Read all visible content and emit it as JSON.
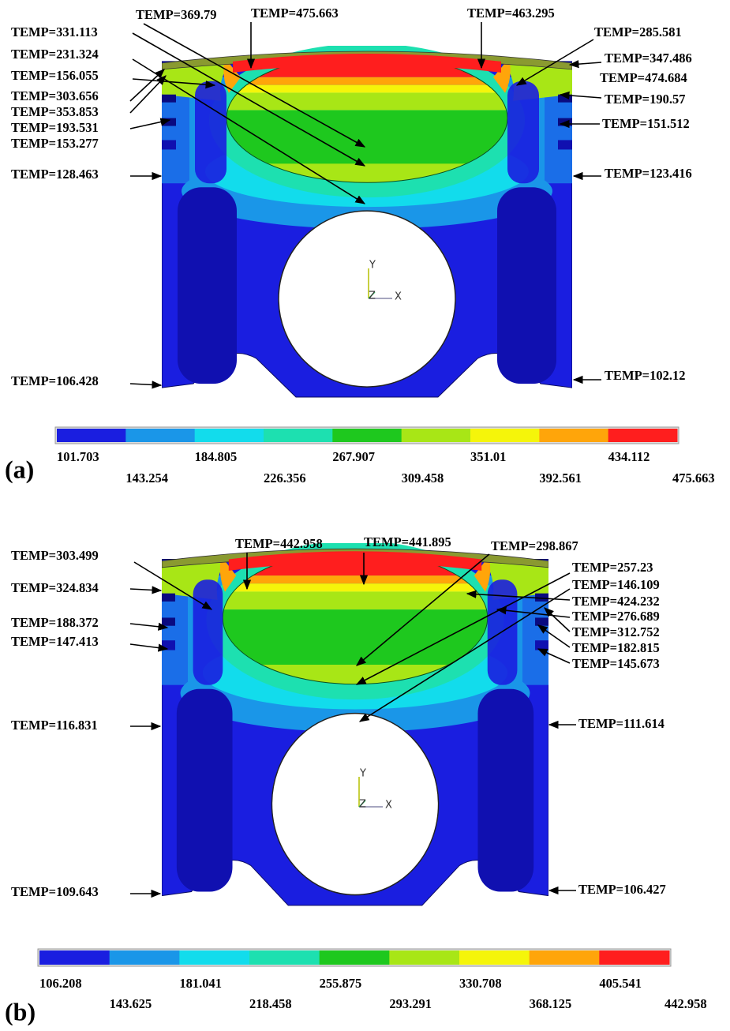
{
  "panels": [
    {
      "label": "(a)",
      "annotations": [
        "TEMP=369.79",
        "TEMP=475.663",
        "TEMP=463.295",
        "TEMP=331.113",
        "TEMP=285.581",
        "TEMP=231.324",
        "TEMP=347.486",
        "TEMP=156.055",
        "TEMP=474.684",
        "TEMP=303.656",
        "TEMP=190.57",
        "TEMP=353.853",
        "TEMP=151.512",
        "TEMP=193.531",
        "TEMP=153.277",
        "TEMP=128.463",
        "TEMP=123.416",
        "TEMP=106.428",
        "TEMP=102.12"
      ],
      "triad": [
        "Y",
        "Z",
        "X"
      ],
      "colorbar": {
        "colors": [
          "#1a1ee0",
          "#1a96e8",
          "#12dcec",
          "#1de0b0",
          "#1ec81e",
          "#a8e616",
          "#f5f50a",
          "#ffa50a",
          "#ff1e1e"
        ],
        "ticks": [
          "101.703",
          "143.254",
          "184.805",
          "226.356",
          "267.907",
          "309.458",
          "351.01",
          "392.561",
          "434.112",
          "475.663"
        ]
      }
    },
    {
      "label": "(b)",
      "annotations": [
        "TEMP=442.958",
        "TEMP=441.895",
        "TEMP=298.867",
        "TEMP=303.499",
        "TEMP=257.23",
        "TEMP=324.834",
        "TEMP=146.109",
        "TEMP=424.232",
        "TEMP=188.372",
        "TEMP=276.689",
        "TEMP=312.752",
        "TEMP=147.413",
        "TEMP=182.815",
        "TEMP=145.673",
        "TEMP=116.831",
        "TEMP=111.614",
        "TEMP=109.643",
        "TEMP=106.427"
      ],
      "triad": [
        "Y",
        "Z",
        "X"
      ],
      "colorbar": {
        "colors": [
          "#1a1ee0",
          "#1a96e8",
          "#12dcec",
          "#1de0b0",
          "#1ec81e",
          "#a8e616",
          "#f5f50a",
          "#ffa50a",
          "#ff1e1e"
        ],
        "ticks": [
          "106.208",
          "143.625",
          "181.041",
          "218.458",
          "255.875",
          "293.291",
          "330.708",
          "368.125",
          "405.541",
          "442.958"
        ]
      }
    }
  ]
}
